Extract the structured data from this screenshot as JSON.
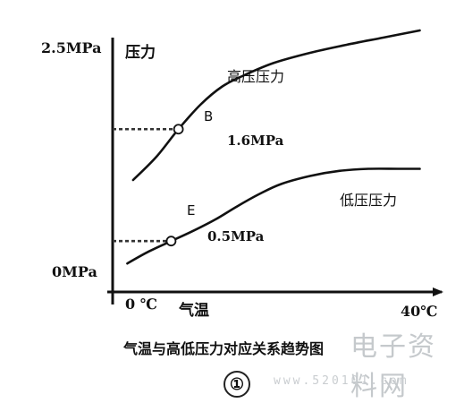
{
  "chart_data": {
    "type": "line",
    "title": "气温与高低压力对应关系趋势图",
    "figure_number": "①",
    "xlabel": "气温",
    "ylabel": "压力",
    "x_ticks": [
      "0 ℃",
      "40℃"
    ],
    "y_ticks": [
      "0MPa",
      "2.5MPa"
    ],
    "xlim": [
      -2,
      43
    ],
    "ylim": [
      0,
      2.5
    ],
    "series": [
      {
        "name": "高压压力",
        "x": [
          0.8,
          4,
          7,
          10,
          13,
          16,
          20,
          25,
          30,
          35,
          40
        ],
        "y": [
          1.1,
          1.33,
          1.6,
          1.84,
          2.02,
          2.13,
          2.25,
          2.35,
          2.43,
          2.5,
          2.57
        ]
      },
      {
        "name": "低压压力",
        "x": [
          0,
          3,
          6,
          9,
          12,
          15,
          18,
          21,
          25,
          29,
          33,
          37,
          40
        ],
        "y": [
          0.28,
          0.4,
          0.5,
          0.6,
          0.71,
          0.84,
          0.96,
          1.06,
          1.14,
          1.19,
          1.21,
          1.21,
          1.21
        ]
      }
    ],
    "points": [
      {
        "label": "B",
        "x": 7,
        "y": 1.6,
        "value_label": "1.6MPa"
      },
      {
        "label": "E",
        "x": 6,
        "y": 0.5,
        "value_label": "0.5MPa"
      }
    ],
    "grid": false
  },
  "watermark": {
    "text": "电子资料网",
    "url": "www.520101.com"
  },
  "colors": {
    "ink": "#111111",
    "dash": "#333333"
  }
}
